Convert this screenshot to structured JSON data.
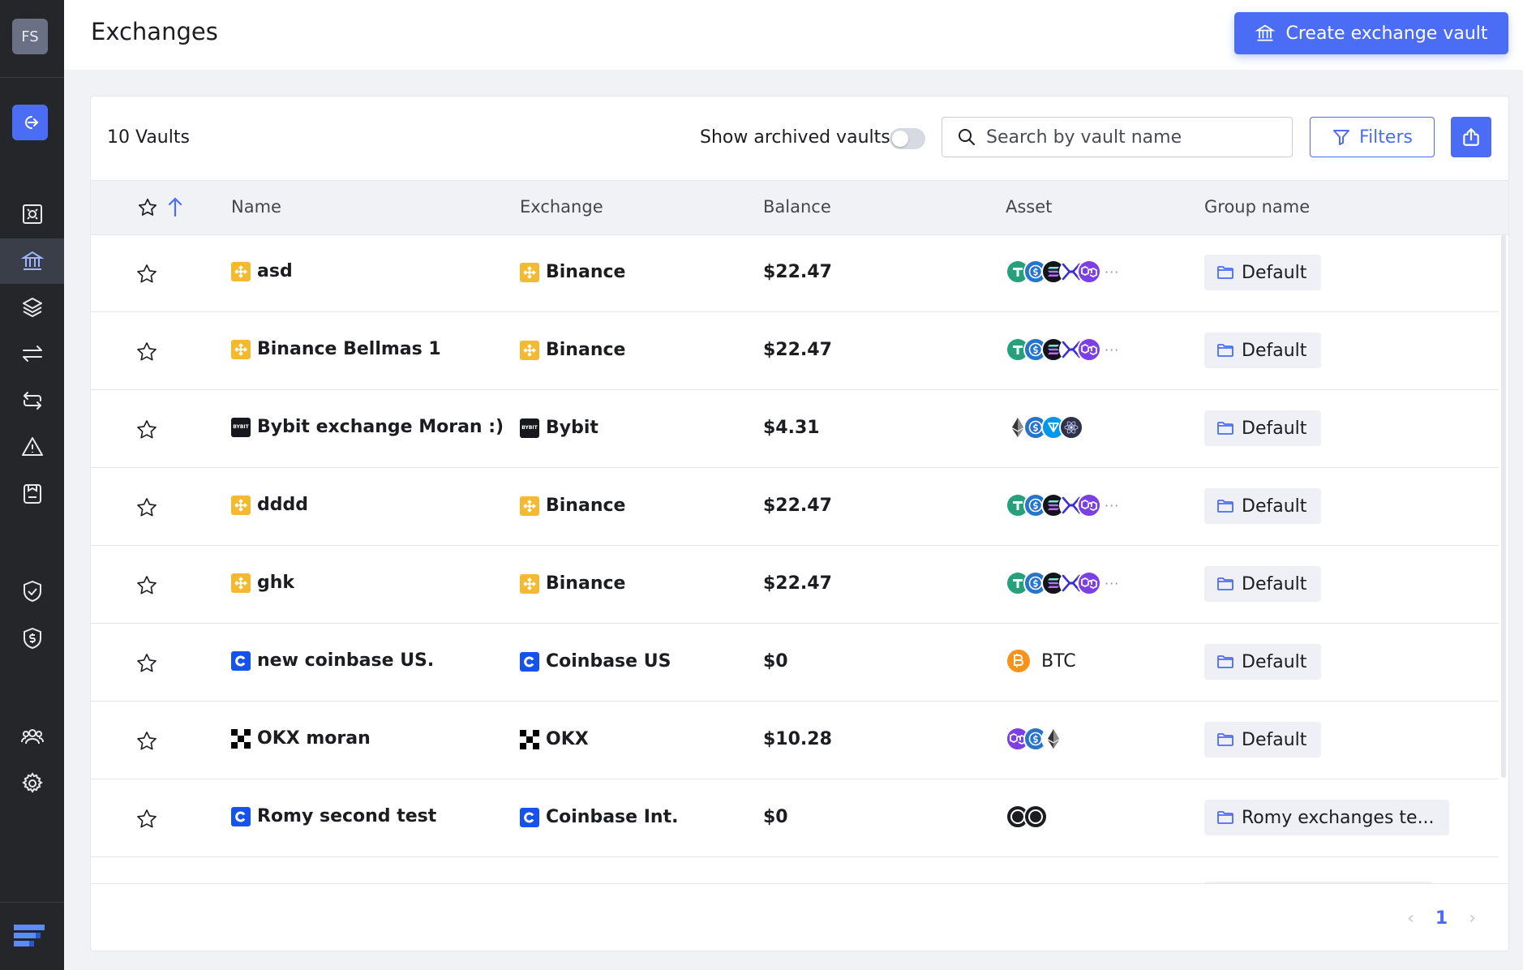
{
  "user": {
    "initials": "FS"
  },
  "header": {
    "title": "Exchanges",
    "create_label": "Create exchange vault"
  },
  "toolbar": {
    "vault_count": "10 Vaults",
    "archived_label": "Show archived vaults",
    "archived_on": false,
    "search_placeholder": "Search by vault name",
    "filters_label": "Filters"
  },
  "table": {
    "columns": {
      "name": "Name",
      "exchange": "Exchange",
      "balance": "Balance",
      "asset": "Asset",
      "group": "Group name"
    },
    "rows": [
      {
        "name": "asd",
        "exchange": "Binance",
        "exchange_icon": "binance-icon",
        "balance": "$22.47",
        "assets": [
          "usdt",
          "usdc",
          "sol",
          "xrp",
          "pol"
        ],
        "more": "···",
        "group": "Default"
      },
      {
        "name": "Binance Bellmas 1",
        "exchange": "Binance",
        "exchange_icon": "binance-icon",
        "balance": "$22.47",
        "assets": [
          "usdt",
          "usdc",
          "sol",
          "xrp",
          "pol"
        ],
        "more": "···",
        "group": "Default"
      },
      {
        "name": "Bybit exchange Moran :)",
        "exchange": "Bybit",
        "exchange_icon": "bybit-icon",
        "balance": "$4.31",
        "assets": [
          "eth",
          "usdc",
          "ton",
          "atom"
        ],
        "more": "",
        "group": "Default"
      },
      {
        "name": "dddd",
        "exchange": "Binance",
        "exchange_icon": "binance-icon",
        "balance": "$22.47",
        "assets": [
          "usdt",
          "usdc",
          "sol",
          "xrp",
          "pol"
        ],
        "more": "···",
        "group": "Default"
      },
      {
        "name": "ghk",
        "exchange": "Binance",
        "exchange_icon": "binance-icon",
        "balance": "$22.47",
        "assets": [
          "usdt",
          "usdc",
          "sol",
          "xrp",
          "pol"
        ],
        "more": "···",
        "group": "Default"
      },
      {
        "name": "new coinbase US.",
        "exchange": "Coinbase US",
        "exchange_icon": "coinbase-icon",
        "balance": "$0",
        "assets": [
          "btc"
        ],
        "asset_label": "BTC",
        "more": "",
        "group": "Default"
      },
      {
        "name": "OKX moran",
        "exchange": "OKX",
        "exchange_icon": "okx-icon",
        "balance": "$10.28",
        "assets": [
          "pol",
          "usdc",
          "eth"
        ],
        "more": "",
        "group": "Default"
      },
      {
        "name": "Romy second test",
        "exchange": "Coinbase Int.",
        "exchange_icon": "coinbase-icon",
        "balance": "$0",
        "assets": [
          "generic",
          "generic"
        ],
        "more": "",
        "group": "Romy exchanges te..."
      }
    ]
  },
  "pagination": {
    "prev": "‹",
    "current": "1",
    "next": "›"
  },
  "colors": {
    "accent": "#4b6cf4",
    "sidebar": "#252629",
    "binance": "#f3ba2f",
    "coinbase": "#1652f0"
  }
}
